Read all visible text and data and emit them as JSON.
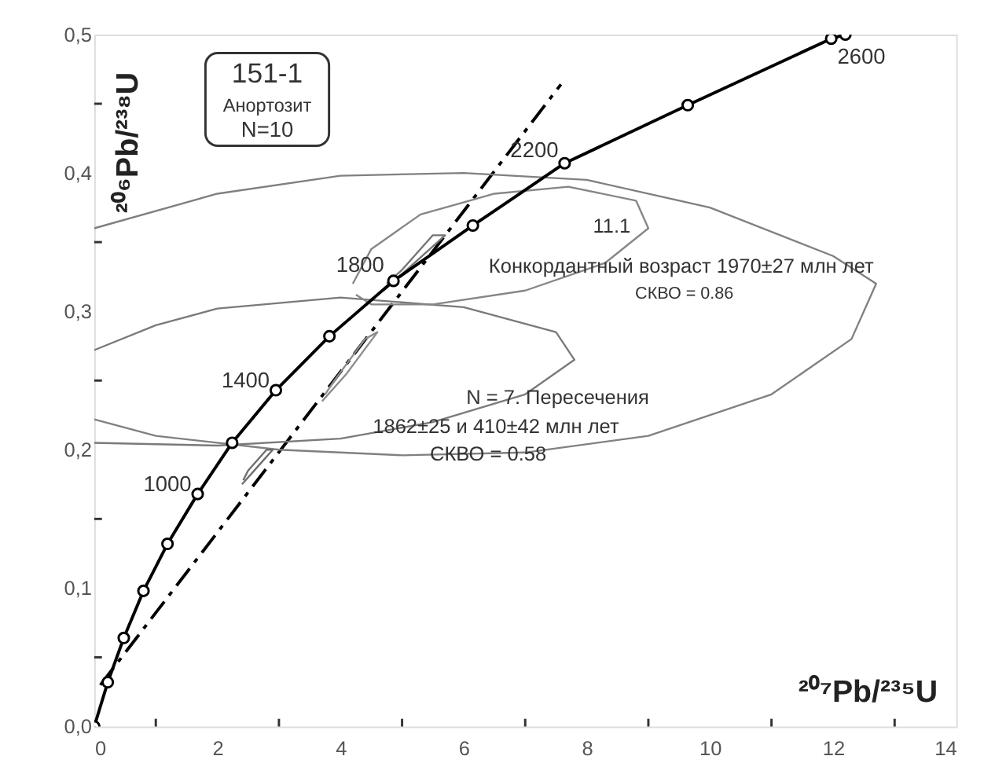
{
  "chart_data": {
    "type": "line",
    "xlabel": "²⁰⁷Pb/²³⁵U",
    "ylabel": "²⁰⁶Pb/²³⁸U",
    "xlim": [
      0,
      14
    ],
    "ylim": [
      0,
      0.5
    ],
    "xticks": [
      0,
      {
        "value": 1,
        "label": null
      },
      2,
      {
        "value": 3,
        "label": null
      },
      4,
      {
        "value": 5,
        "label": null
      },
      6,
      {
        "value": 7,
        "label": null
      },
      8,
      {
        "value": 9,
        "label": null
      },
      10,
      {
        "value": 11,
        "label": null
      },
      12,
      {
        "value": 13,
        "label": null
      },
      14
    ],
    "yticks": [
      {
        "value": 0,
        "label": "0,0"
      },
      {
        "value": 0.05,
        "label": null
      },
      {
        "value": 0.1,
        "label": "0,1"
      },
      {
        "value": 0.15,
        "label": null
      },
      {
        "value": 0.2,
        "label": "0,2"
      },
      {
        "value": 0.25,
        "label": null
      },
      {
        "value": 0.3,
        "label": "0,3"
      },
      {
        "value": 0.35,
        "label": null
      },
      {
        "value": 0.4,
        "label": "0,4"
      },
      {
        "value": 0.45,
        "label": null
      },
      {
        "value": 0.5,
        "label": "0,5"
      }
    ],
    "grid": false,
    "series": [
      {
        "marker": "none",
        "line_style": "dashed",
        "color": "#000000",
        "x": [
          0.1,
          7.58
        ],
        "values": [
          0.03,
          0.464
        ]
      },
      {
        "marker": "none",
        "line_style": "solid",
        "color": "#808080",
        "x": [
          0,
          2,
          4,
          6,
          8,
          10,
          12,
          12.7,
          12.3,
          11,
          9,
          7,
          5,
          3,
          1,
          0
        ],
        "values": [
          0.36,
          0.385,
          0.398,
          0.4,
          0.395,
          0.375,
          0.34,
          0.32,
          0.28,
          0.24,
          0.21,
          0.198,
          0.196,
          0.2,
          0.21,
          0.222
        ]
      },
      {
        "marker": "none",
        "line_style": "solid",
        "color": "#7a7a7a",
        "x": [
          0,
          1,
          2,
          4,
          6,
          7.5,
          7.8,
          7,
          5.5,
          4,
          2,
          0
        ],
        "values": [
          0.272,
          0.29,
          0.302,
          0.31,
          0.303,
          0.285,
          0.265,
          0.24,
          0.22,
          0.208,
          0.203,
          0.205
        ]
      },
      {
        "marker": "none",
        "line_style": "solid",
        "color": "#868686",
        "x": [
          4.2,
          4.5,
          5.3,
          6.5,
          7.7,
          8.8,
          9.0,
          8.3,
          7,
          5.5,
          4.5,
          4.25
        ],
        "values": [
          0.32,
          0.345,
          0.37,
          0.385,
          0.39,
          0.38,
          0.36,
          0.335,
          0.315,
          0.305,
          0.305,
          0.312
        ]
      },
      {
        "marker": "none",
        "line_style": "solid",
        "color": "#747474",
        "x": [
          4.7,
          5.2,
          5.7,
          5.5,
          5.0,
          4.75
        ],
        "values": [
          0.315,
          0.335,
          0.355,
          0.355,
          0.33,
          0.32
        ]
      },
      {
        "marker": "none",
        "line_style": "solid",
        "color": "#8c8c8c",
        "x": [
          3.7,
          4.1,
          4.6,
          4.4,
          3.9,
          3.75
        ],
        "values": [
          0.235,
          0.255,
          0.285,
          0.28,
          0.25,
          0.24
        ]
      },
      {
        "marker": "none",
        "line_style": "solid",
        "color": "#6e6e6e",
        "x": [
          2.4,
          2.7,
          2.9,
          2.8,
          2.5,
          2.42
        ],
        "values": [
          0.175,
          0.19,
          0.2,
          0.2,
          0.185,
          0.178
        ]
      },
      {
        "marker": "circle",
        "line_style": "solid",
        "color": "#000000",
        "x": [
          0,
          0.22,
          0.48,
          0.8,
          1.19,
          1.68,
          2.24,
          2.95,
          3.82,
          4.86,
          6.15,
          7.64,
          9.64,
          11.97,
          12.2
        ],
        "values": [
          0,
          0.032,
          0.064,
          0.098,
          0.132,
          0.168,
          0.205,
          0.243,
          0.282,
          0.322,
          0.362,
          0.407,
          0.449,
          0.497,
          0.5
        ]
      }
    ],
    "annotations": [
      {
        "text": "1000",
        "x": 1.68,
        "y": 0.168
      },
      {
        "text": "1400",
        "x": 2.95,
        "y": 0.243
      },
      {
        "text": "1800",
        "x": 4.86,
        "y": 0.322
      },
      {
        "text": "2200",
        "x": 7.64,
        "y": 0.407
      },
      {
        "text": "2600",
        "x": 11.97,
        "y": 0.497
      },
      "11.1",
      "151-1",
      "Анортозит",
      "N=10",
      "Конкордантный возраст 1970±27 млн лет",
      "СКВО = 0.86",
      "N = 7. Пересечения",
      "1862±25 и 410±42 млн лет",
      "СКВО = 0.58"
    ]
  }
}
